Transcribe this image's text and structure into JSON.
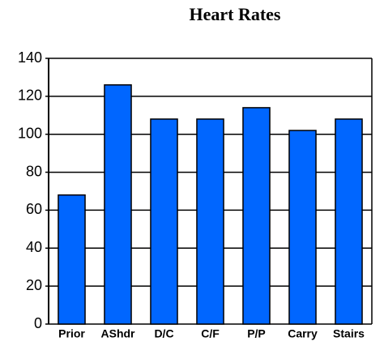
{
  "chart_data": {
    "type": "bar",
    "title": "Heart Rates",
    "categories": [
      "Prior",
      "AShdr",
      "D/C",
      "C/F",
      "P/P",
      "Carry",
      "Stairs"
    ],
    "values": [
      68,
      126,
      108,
      108,
      114,
      102,
      108
    ],
    "color": "#0066ff",
    "ylim": [
      0,
      140
    ],
    "yticks": [
      0,
      20,
      40,
      60,
      80,
      100,
      120,
      140
    ],
    "grid": true
  }
}
